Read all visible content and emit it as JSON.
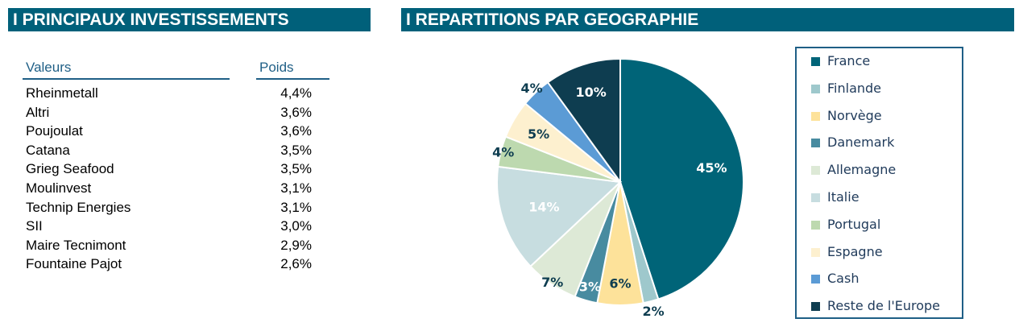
{
  "left_panel": {
    "title": "I PRINCIPAUX INVESTISSEMENTS",
    "col_name": "Valeurs",
    "col_weight": "Poids",
    "rows": [
      {
        "name": "Rheinmetall",
        "weight": "4,4%"
      },
      {
        "name": "Altri",
        "weight": "3,6%"
      },
      {
        "name": "Poujoulat",
        "weight": "3,6%"
      },
      {
        "name": "Catana",
        "weight": "3,5%"
      },
      {
        "name": "Grieg Seafood",
        "weight": "3,5%"
      },
      {
        "name": "Moulinvest",
        "weight": "3,1%"
      },
      {
        "name": "Technip Energies",
        "weight": "3,1%"
      },
      {
        "name": "SII",
        "weight": "3,0%"
      },
      {
        "name": "Maire Tecnimont",
        "weight": "2,9%"
      },
      {
        "name": "Fountaine Pajot",
        "weight": "2,6%"
      }
    ]
  },
  "right_panel": {
    "title": "I REPARTITIONS PAR GEOGRAPHIE"
  },
  "chart_data": {
    "type": "pie",
    "start": "12 o'clock, clockwise",
    "categories": [
      "France",
      "Finlande",
      "Norvège",
      "Danemark",
      "Allemagne",
      "Italie",
      "Portugal",
      "Espagne",
      "Cash",
      "Reste de l'Europe"
    ],
    "values": [
      45,
      2,
      6,
      3,
      7,
      14,
      4,
      5,
      4,
      10
    ],
    "labels": [
      "45%",
      "2%",
      "6%",
      "3%",
      "7%",
      "14%",
      "4%",
      "5%",
      "4%",
      "10%"
    ],
    "colors": [
      "#006478",
      "#9ec8cc",
      "#fde29a",
      "#488ba0",
      "#dde9d6",
      "#c7dde0",
      "#bdd9af",
      "#fdf0cf",
      "#5b9bd5",
      "#0e3d50"
    ],
    "legend": "right"
  }
}
